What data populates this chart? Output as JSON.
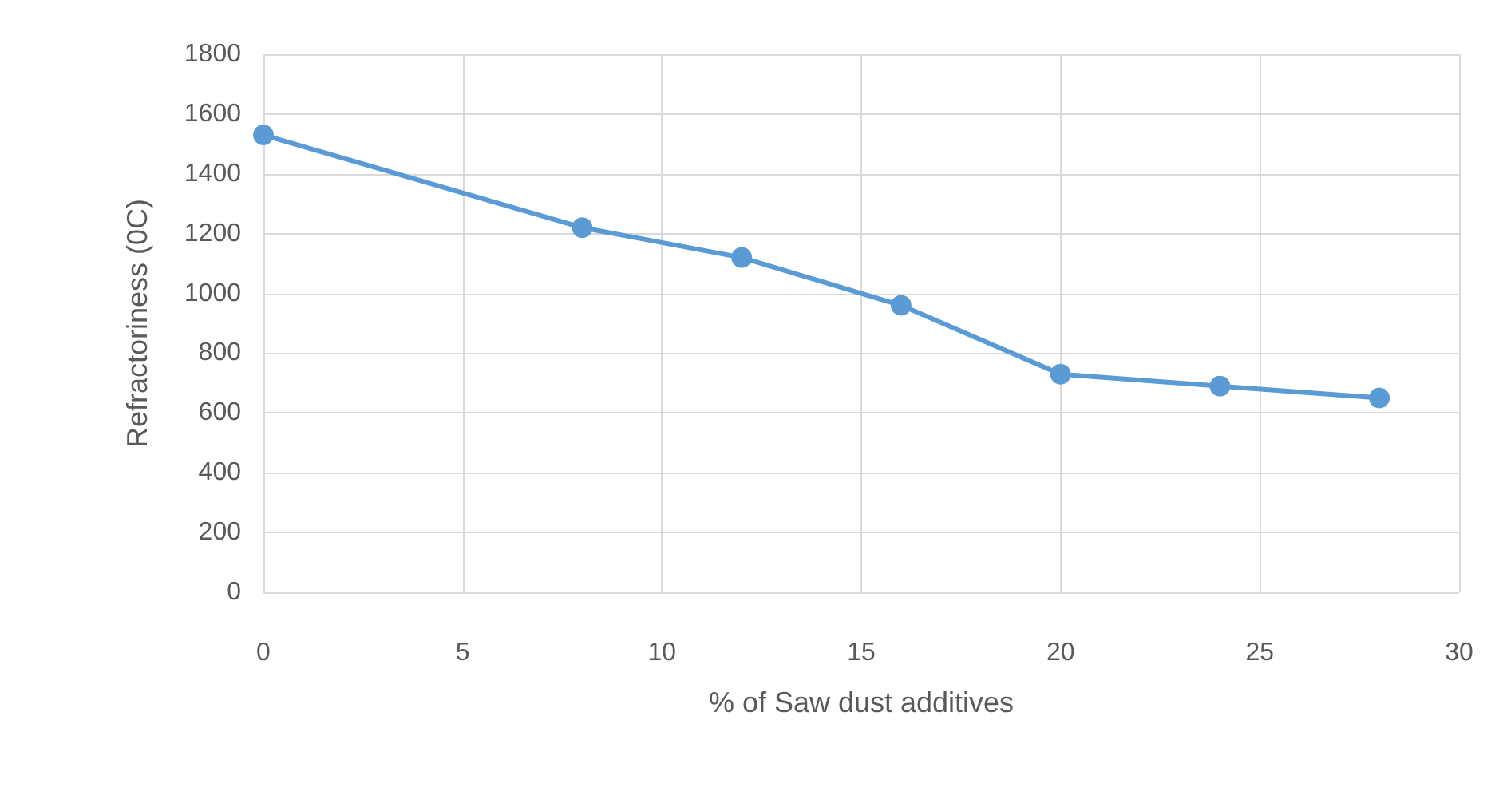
{
  "chart_data": {
    "type": "line",
    "xlabel": "% of Saw dust additives",
    "ylabel": "Refractoriness (0C)",
    "x": [
      0,
      8,
      12,
      16,
      20,
      24,
      28
    ],
    "series": [
      {
        "color": "#5b9bd5",
        "values": [
          1530,
          1220,
          1120,
          960,
          730,
          690,
          650
        ]
      }
    ],
    "xlim": [
      0,
      30
    ],
    "xticks": [
      0,
      5,
      10,
      15,
      20,
      25,
      30
    ],
    "ylim": [
      0,
      1800
    ],
    "yticks": [
      0,
      200,
      400,
      600,
      800,
      1000,
      1200,
      1400,
      1600,
      1800
    ],
    "grid": true,
    "marker": "circle",
    "line_style": "solid"
  }
}
